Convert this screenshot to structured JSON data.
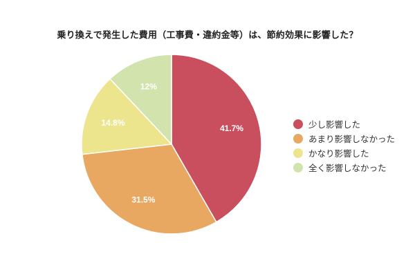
{
  "chart_data": {
    "type": "pie",
    "title": "乗り換えで発生した費用（工事費・違約金等）は、節約効果に影響した？",
    "categories": [
      "少し影響した",
      "あまり影響しなかった",
      "かなり影響した",
      "全く影響しなかった"
    ],
    "values": [
      41.7,
      31.5,
      14.8,
      12
    ],
    "value_labels": [
      "41.7%",
      "31.5%",
      "14.8%",
      "12%"
    ],
    "colors": [
      "#c94f5e",
      "#e8a862",
      "#ece58e",
      "#d3e3ad"
    ],
    "start_angle_deg": 0,
    "direction": "clockwise",
    "legend_position": "right"
  },
  "legend": {
    "items": [
      {
        "label": "少し影響した",
        "color": "#c94f5e"
      },
      {
        "label": "あまり影響しなかった",
        "color": "#e8a862"
      },
      {
        "label": "かなり影響した",
        "color": "#ece58e"
      },
      {
        "label": "全く影響しなかった",
        "color": "#d3e3ad"
      }
    ]
  }
}
